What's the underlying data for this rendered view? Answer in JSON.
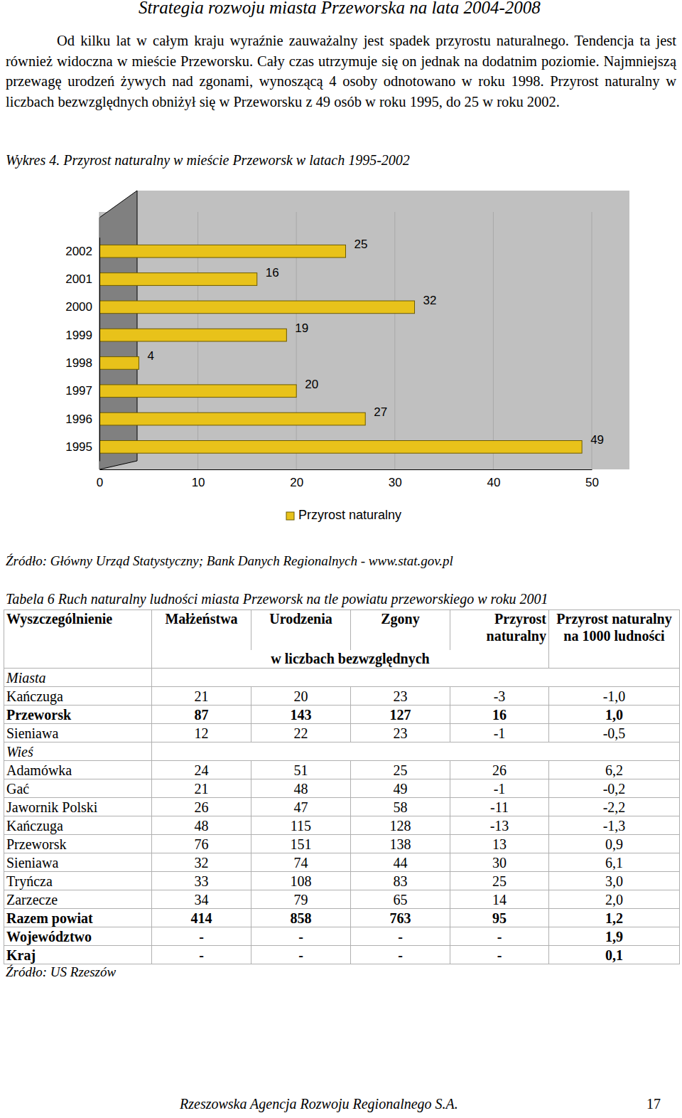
{
  "header": "Strategia rozwoju miasta Przeworska na lata 2004-2008",
  "paragraph": "Od kilku lat w całym kraju wyraźnie zauważalny jest spadek przyrostu naturalnego. Tendencja ta jest również widoczna w mieście Przeworsku. Cały czas utrzymuje się on jednak na dodatnim poziomie. Najmniejszą przewagę urodzeń żywych nad zgonami, wynoszącą 4 osoby odnotowano w roku 1998. Przyrost naturalny w liczbach bezwzględnych obniżył się w Przeworsku z 49 osób w roku 1995, do 25 w roku 2002.",
  "chart_data": {
    "type": "bar",
    "orientation": "horizontal",
    "title": "Wykres 4. Przyrost naturalny w mieście Przeworsk w latach 1995-2002",
    "categories": [
      "1995",
      "1996",
      "1997",
      "1998",
      "1999",
      "2000",
      "2001",
      "2002"
    ],
    "series": [
      {
        "name": "Przyrost naturalny",
        "color": "#e8c21a",
        "values": [
          49,
          27,
          20,
          4,
          19,
          32,
          16,
          25
        ]
      }
    ],
    "xlim": [
      0,
      50
    ],
    "xticks": [
      0,
      10,
      20,
      30,
      40,
      50
    ],
    "grid": true,
    "data_labels": true,
    "legend": "bottom"
  },
  "chart_source": "Źródło: Główny Urząd Statystyczny; Bank Danych Regionalnych - www.stat.gov.pl",
  "table_caption": "Tabela 6 Ruch naturalny ludności miasta Przeworsk na tle powiatu przeworskiego w roku 2001",
  "table": {
    "header": [
      "Wyszczególnienie",
      "Małżeństwa",
      "Urodzenia",
      "Zgony",
      "Przyrost naturalny",
      "Przyrost naturalny na 1000 ludności"
    ],
    "subheader": "w liczbach bezwzględnych",
    "rows": [
      {
        "section": "Miasta"
      },
      {
        "cells": [
          "Kańczuga",
          "21",
          "20",
          "23",
          "-3",
          "-1,0"
        ]
      },
      {
        "cells": [
          "Przeworsk",
          "87",
          "143",
          "127",
          "16",
          "1,0"
        ],
        "emphasis": true
      },
      {
        "cells": [
          "Sieniawa",
          "12",
          "22",
          "23",
          "-1",
          "-0,5"
        ]
      },
      {
        "section": "Wieś"
      },
      {
        "cells": [
          "Adamówka",
          "24",
          "51",
          "25",
          "26",
          "6,2"
        ]
      },
      {
        "cells": [
          "Gać",
          "21",
          "48",
          "49",
          "-1",
          "-0,2"
        ]
      },
      {
        "cells": [
          "Jawornik Polski",
          "26",
          "47",
          "58",
          "-11",
          "-2,2"
        ]
      },
      {
        "cells": [
          "Kańczuga",
          "48",
          "115",
          "128",
          "-13",
          "-1,3"
        ]
      },
      {
        "cells": [
          "Przeworsk",
          "76",
          "151",
          "138",
          "13",
          "0,9"
        ]
      },
      {
        "cells": [
          "Sieniawa",
          "32",
          "74",
          "44",
          "30",
          "6,1"
        ]
      },
      {
        "cells": [
          "Tryńcza",
          "33",
          "108",
          "83",
          "25",
          "3,0"
        ]
      },
      {
        "cells": [
          "Zarzecze",
          "34",
          "79",
          "65",
          "14",
          "2,0"
        ]
      },
      {
        "cells": [
          "Razem powiat",
          "414",
          "858",
          "763",
          "95",
          "1,2"
        ],
        "emphasis": true
      },
      {
        "cells": [
          "Województwo",
          "-",
          "-",
          "-",
          "-",
          "1,9"
        ],
        "emphasis": true
      },
      {
        "cells": [
          "Kraj",
          "-",
          "-",
          "-",
          "-",
          "0,1"
        ],
        "emphasis": true
      }
    ]
  },
  "table_source": "Źródło: US Rzeszów",
  "footer": "Rzeszowska Agencja Rozwoju Regionalnego S.A.",
  "page_number": "17"
}
